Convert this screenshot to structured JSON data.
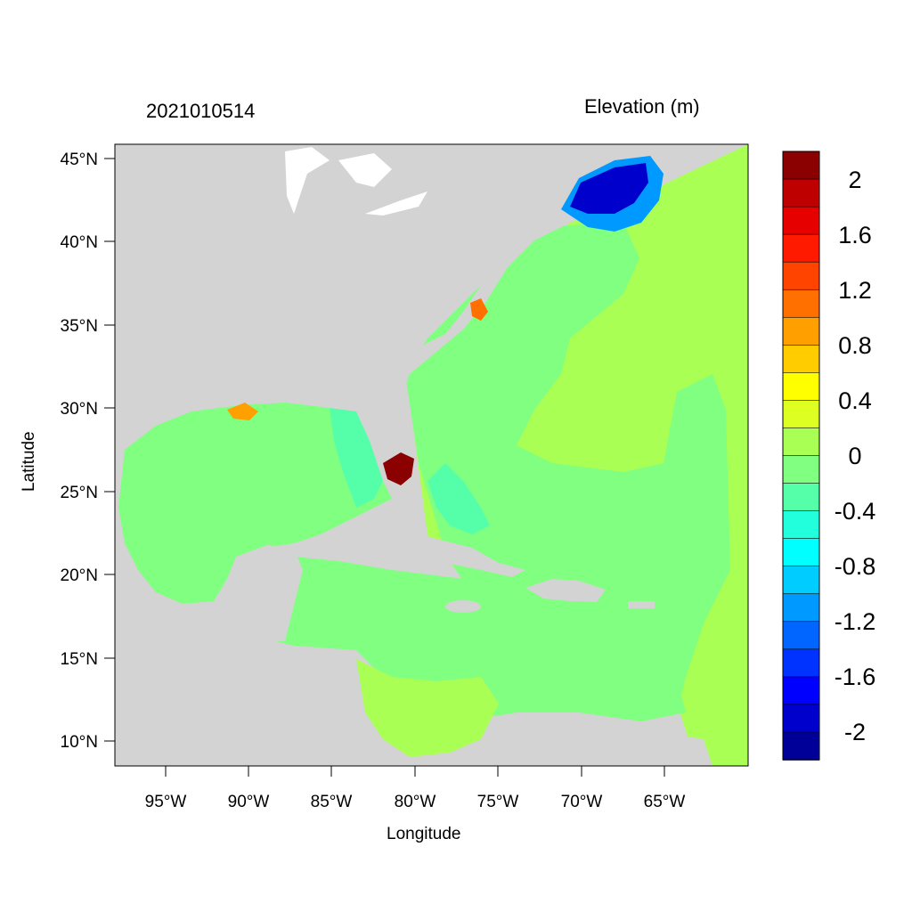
{
  "map": {
    "title_left": "2021010514",
    "title_right": "Elevation (m)",
    "xlabel": "Longitude",
    "ylabel": "Latitude",
    "lat_ticks": [
      "45°N",
      "40°N",
      "35°N",
      "30°N",
      "25°N",
      "20°N",
      "15°N",
      "10°N"
    ],
    "lon_ticks": [
      "95°W",
      "90°W",
      "85°W",
      "80°W",
      "75°W",
      "70°W",
      "65°W"
    ],
    "colorbar_labels": [
      "2",
      "1.6",
      "1.2",
      "0.8",
      "0.4",
      "0",
      "-0.4",
      "-0.8",
      "-1.2",
      "-1.6",
      "-2"
    ],
    "colorbar_colors": [
      "#8b0000",
      "#bf0000",
      "#e60000",
      "#ff1a00",
      "#ff4400",
      "#ff7000",
      "#ff9f00",
      "#ffcc00",
      "#ffff00",
      "#ddff22",
      "#aaff55",
      "#80ff80",
      "#55ffaa",
      "#22ffdd",
      "#00ffff",
      "#00ccff",
      "#0099ff",
      "#0066ff",
      "#0033ff",
      "#0000ff",
      "#0000cc",
      "#000099"
    ],
    "colors": {
      "land": "#d3d3d3",
      "ocean_zero": "#80ff80",
      "lake": "#ffffff"
    }
  }
}
